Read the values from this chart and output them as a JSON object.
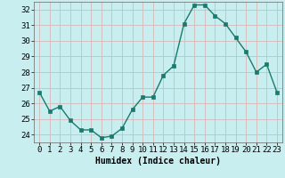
{
  "x": [
    0,
    1,
    2,
    3,
    4,
    5,
    6,
    7,
    8,
    9,
    10,
    11,
    12,
    13,
    14,
    15,
    16,
    17,
    18,
    19,
    20,
    21,
    22,
    23
  ],
  "y": [
    26.7,
    25.5,
    25.8,
    24.9,
    24.3,
    24.3,
    23.8,
    23.9,
    24.4,
    25.6,
    26.4,
    26.4,
    27.8,
    28.4,
    31.1,
    32.3,
    32.3,
    31.6,
    31.1,
    30.2,
    29.3,
    28.0,
    28.5,
    26.7
  ],
  "line_color": "#1a7a6e",
  "marker_color": "#1a7a6e",
  "bg_color": "#c8eef0",
  "grid_color": "#d8b8b8",
  "xlabel": "Humidex (Indice chaleur)",
  "xlim": [
    -0.5,
    23.5
  ],
  "ylim": [
    23.5,
    32.5
  ],
  "yticks": [
    24,
    25,
    26,
    27,
    28,
    29,
    30,
    31,
    32
  ],
  "xticks": [
    0,
    1,
    2,
    3,
    4,
    5,
    6,
    7,
    8,
    9,
    10,
    11,
    12,
    13,
    14,
    15,
    16,
    17,
    18,
    19,
    20,
    21,
    22,
    23
  ],
  "xlabel_fontsize": 7,
  "tick_fontsize": 6.5,
  "linewidth": 1.0,
  "markersize": 2.5
}
